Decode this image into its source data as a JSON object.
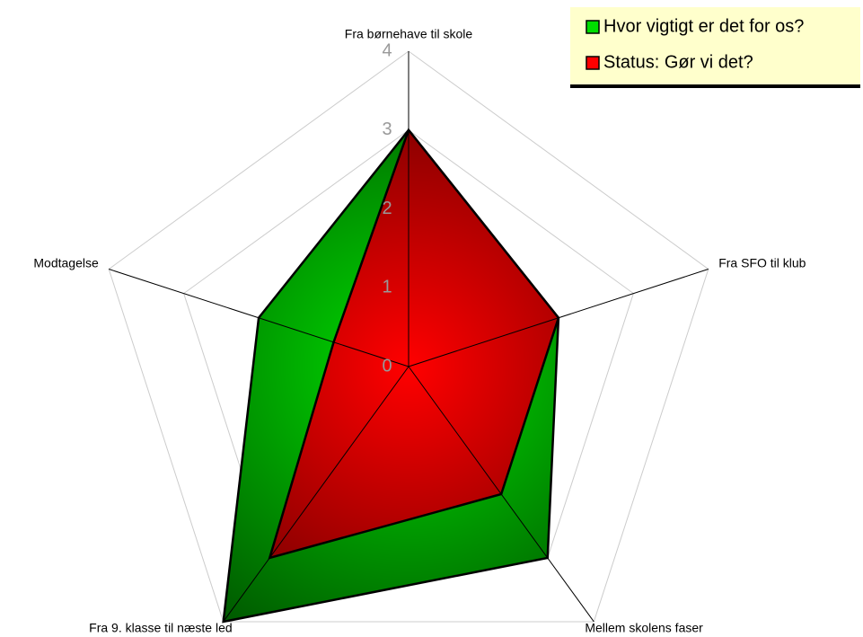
{
  "chart_data": {
    "type": "radar",
    "categories": [
      "Fra børnehave til skole",
      "Fra SFO til klub",
      "Mellem skolens faser",
      "Fra 9. klasse til næste led",
      "Modtagelse"
    ],
    "series": [
      {
        "name": "Hvor vigtigt er det for os?",
        "color": "#00dd00",
        "values": [
          3,
          2,
          3,
          4,
          2
        ]
      },
      {
        "name": "Status: Gør vi det?",
        "color": "#ff0000",
        "values": [
          3,
          2,
          2,
          3,
          1
        ]
      }
    ],
    "rlim": [
      0,
      4
    ],
    "rticks": [
      0,
      1,
      2,
      3,
      4
    ],
    "grid": true,
    "legend": "top-right"
  }
}
